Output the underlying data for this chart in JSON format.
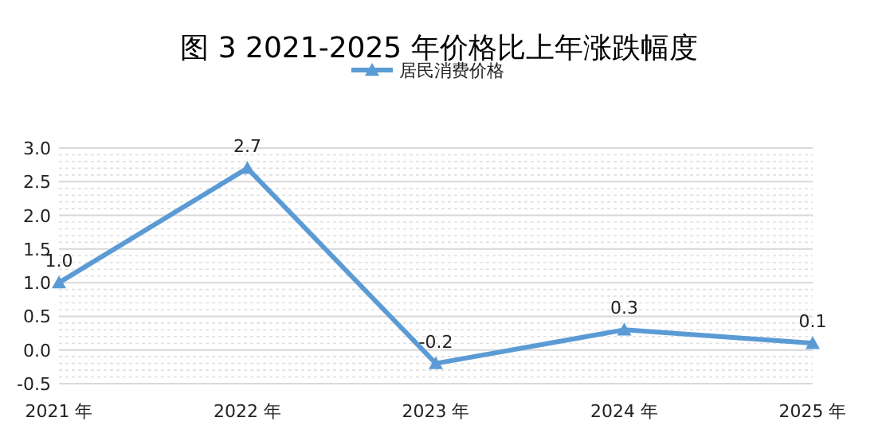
{
  "chart_data": {
    "type": "line",
    "title": "图 3  2021-2025 年价格比上年涨跌幅度",
    "categories": [
      "2021 年",
      "2022 年",
      "2023 年",
      "2024 年",
      "2025 年"
    ],
    "series": [
      {
        "name": "居民消费价格",
        "color": "#5b9bd5",
        "values": [
          1.0,
          2.7,
          -0.2,
          0.3,
          0.1
        ]
      }
    ],
    "ylim": [
      -0.5,
      3.0
    ],
    "yticks": [
      {
        "value": -0.5,
        "label": "-0.5"
      },
      {
        "value": 0,
        "label": "0.0"
      },
      {
        "value": 0.5,
        "label": "0.5"
      },
      {
        "value": 1,
        "label": "1.0"
      },
      {
        "value": 1.5,
        "label": "1.5"
      },
      {
        "value": 2,
        "label": "2.0"
      },
      {
        "value": 2.5,
        "label": "2.5"
      },
      {
        "value": 3,
        "label": "3.0"
      }
    ],
    "value_labels": [
      "1.0",
      "2.7",
      "-0.2",
      "0.3",
      "0.1"
    ],
    "grid": "y",
    "legend": "top",
    "marker": "triangle",
    "line_style": "solid"
  }
}
